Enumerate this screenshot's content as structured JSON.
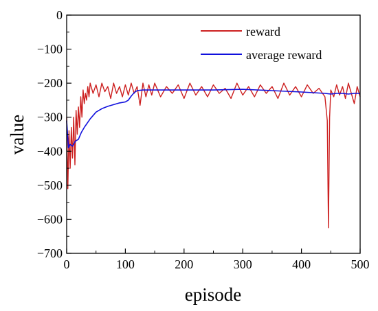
{
  "chart_data": {
    "type": "line",
    "title": "",
    "xlabel": "episode",
    "ylabel": "value",
    "xlim": [
      0,
      500
    ],
    "ylim": [
      -700,
      0
    ],
    "xticks": [
      0,
      100,
      200,
      300,
      400,
      500
    ],
    "yticks": [
      0,
      -100,
      -200,
      -300,
      -400,
      -500,
      -600,
      -700
    ],
    "xtick_labels": [
      "0",
      "100",
      "200",
      "300",
      "400",
      "500"
    ],
    "ytick_labels": [
      "0",
      "−100",
      "−200",
      "−300",
      "−400",
      "−500",
      "−600",
      "−700"
    ],
    "grid": false,
    "legend_position": "top-right",
    "series": [
      {
        "name": "reward",
        "color": "#cc1f1f",
        "x": [
          0,
          2,
          4,
          6,
          8,
          10,
          12,
          14,
          16,
          18,
          20,
          22,
          24,
          26,
          28,
          30,
          32,
          34,
          36,
          38,
          40,
          45,
          50,
          55,
          60,
          65,
          70,
          75,
          80,
          85,
          90,
          95,
          100,
          105,
          110,
          115,
          120,
          125,
          130,
          135,
          140,
          145,
          150,
          160,
          170,
          180,
          190,
          200,
          210,
          220,
          230,
          240,
          250,
          260,
          270,
          280,
          290,
          300,
          310,
          320,
          330,
          340,
          350,
          360,
          370,
          380,
          390,
          400,
          410,
          420,
          430,
          440,
          444,
          446,
          448,
          450,
          455,
          460,
          465,
          470,
          475,
          480,
          485,
          490,
          495,
          500
        ],
        "y": [
          -300,
          -510,
          -340,
          -450,
          -330,
          -420,
          -300,
          -440,
          -280,
          -350,
          -270,
          -330,
          -240,
          -300,
          -220,
          -260,
          -230,
          -250,
          -210,
          -240,
          -200,
          -230,
          -205,
          -240,
          -200,
          -225,
          -210,
          -245,
          -200,
          -230,
          -210,
          -240,
          -205,
          -235,
          -200,
          -230,
          -210,
          -265,
          -200,
          -240,
          -205,
          -235,
          -200,
          -240,
          -210,
          -230,
          -205,
          -245,
          -200,
          -235,
          -210,
          -240,
          -205,
          -230,
          -215,
          -245,
          -200,
          -235,
          -210,
          -240,
          -205,
          -230,
          -210,
          -245,
          -200,
          -235,
          -210,
          -240,
          -205,
          -230,
          -215,
          -240,
          -310,
          -625,
          -300,
          -220,
          -240,
          -205,
          -235,
          -210,
          -245,
          -200,
          -230,
          -260,
          -210,
          -240
        ]
      },
      {
        "name": "average reward",
        "color": "#1010dd",
        "x": [
          0,
          3,
          6,
          10,
          15,
          20,
          25,
          30,
          40,
          50,
          60,
          70,
          80,
          90,
          100,
          105,
          110,
          115,
          120,
          130,
          150,
          200,
          250,
          300,
          350,
          400,
          420,
          440,
          450,
          460,
          470,
          480,
          490,
          500
        ],
        "y": [
          -310,
          -390,
          -380,
          -385,
          -370,
          -365,
          -345,
          -330,
          -305,
          -285,
          -275,
          -268,
          -263,
          -258,
          -255,
          -250,
          -238,
          -228,
          -222,
          -220,
          -220,
          -220,
          -220,
          -218,
          -222,
          -226,
          -228,
          -230,
          -232,
          -230,
          -230,
          -232,
          -230,
          -230
        ]
      }
    ]
  }
}
